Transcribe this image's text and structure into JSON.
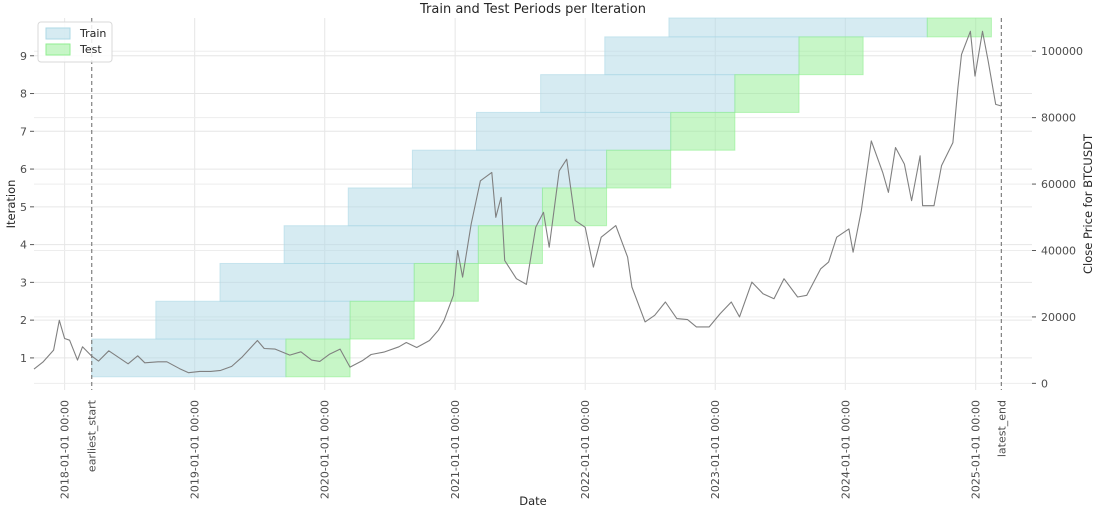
{
  "chart_data": {
    "type": "area",
    "title": "Train and Test Periods per Iteration",
    "xlabel": "Date",
    "ylabel": "Iteration",
    "y2label": "Close Price for BTCUSDT",
    "xlim": [
      "2017-10-07",
      "2025-06-08"
    ],
    "ylim": [
      0.15,
      10.0
    ],
    "y2lim": [
      -2000,
      110000
    ],
    "grid": true,
    "legend_position": "top-left",
    "x_ticks": [
      {
        "date": "2018-01-01",
        "label": "2018-01-01 00:00"
      },
      {
        "date": "2019-01-01",
        "label": "2019-01-01 00:00"
      },
      {
        "date": "2020-01-01",
        "label": "2020-01-01 00:00"
      },
      {
        "date": "2021-01-01",
        "label": "2021-01-01 00:00"
      },
      {
        "date": "2022-01-01",
        "label": "2022-01-01 00:00"
      },
      {
        "date": "2023-01-01",
        "label": "2023-01-01 00:00"
      },
      {
        "date": "2024-01-01",
        "label": "2024-01-01 00:00"
      },
      {
        "date": "2025-01-01",
        "label": "2025-01-01 00:00"
      }
    ],
    "y_ticks": [
      1,
      2,
      3,
      4,
      5,
      6,
      7,
      8,
      9
    ],
    "y2_ticks": [
      0,
      20000,
      40000,
      60000,
      80000,
      100000
    ],
    "markers": [
      {
        "date": "2018-03-18",
        "label": "earliest_start"
      },
      {
        "date": "2025-03-14",
        "label": "latest_end"
      }
    ],
    "legend": [
      {
        "name": "Train",
        "color": "#add8e6"
      },
      {
        "name": "Test",
        "color": "#90ee90"
      }
    ],
    "iterations": [
      {
        "iteration": 1,
        "train": [
          "2018-03-18",
          "2019-09-14"
        ],
        "test": [
          "2019-09-14",
          "2020-03-12"
        ]
      },
      {
        "iteration": 2,
        "train": [
          "2018-09-14",
          "2020-03-12"
        ],
        "test": [
          "2020-03-12",
          "2020-09-08"
        ]
      },
      {
        "iteration": 3,
        "train": [
          "2019-03-13",
          "2020-09-08"
        ],
        "test": [
          "2020-09-08",
          "2021-03-07"
        ]
      },
      {
        "iteration": 4,
        "train": [
          "2019-09-09",
          "2021-03-07"
        ],
        "test": [
          "2021-03-07",
          "2021-09-03"
        ]
      },
      {
        "iteration": 5,
        "train": [
          "2020-03-07",
          "2021-09-03"
        ],
        "test": [
          "2021-09-03",
          "2022-03-02"
        ]
      },
      {
        "iteration": 6,
        "train": [
          "2020-09-03",
          "2022-03-02"
        ],
        "test": [
          "2022-03-02",
          "2022-08-29"
        ]
      },
      {
        "iteration": 7,
        "train": [
          "2021-03-02",
          "2022-08-29"
        ],
        "test": [
          "2022-08-29",
          "2023-02-25"
        ]
      },
      {
        "iteration": 8,
        "train": [
          "2021-08-29",
          "2023-02-25"
        ],
        "test": [
          "2023-02-25",
          "2023-08-24"
        ]
      },
      {
        "iteration": 9,
        "train": [
          "2022-02-25",
          "2023-08-24"
        ],
        "test": [
          "2023-08-24",
          "2024-02-20"
        ]
      },
      {
        "iteration": 10,
        "train": [
          "2022-08-24",
          "2024-08-18"
        ],
        "test": [
          "2024-08-18",
          "2025-02-14"
        ]
      }
    ],
    "price_series": {
      "name": "Close Price for BTCUSDT",
      "color": "#808080",
      "points": [
        [
          "2017-10-07",
          4300
        ],
        [
          "2017-11-01",
          6400
        ],
        [
          "2017-12-01",
          10000
        ],
        [
          "2017-12-17",
          19000
        ],
        [
          "2018-01-01",
          13500
        ],
        [
          "2018-01-15",
          13000
        ],
        [
          "2018-02-06",
          7000
        ],
        [
          "2018-02-20",
          11000
        ],
        [
          "2018-03-18",
          8200
        ],
        [
          "2018-04-06",
          6700
        ],
        [
          "2018-05-05",
          9800
        ],
        [
          "2018-06-28",
          5900
        ],
        [
          "2018-07-25",
          8300
        ],
        [
          "2018-08-14",
          6200
        ],
        [
          "2018-09-20",
          6500
        ],
        [
          "2018-10-15",
          6500
        ],
        [
          "2018-11-20",
          4400
        ],
        [
          "2018-12-15",
          3200
        ],
        [
          "2019-01-15",
          3600
        ],
        [
          "2019-02-15",
          3600
        ],
        [
          "2019-03-15",
          3900
        ],
        [
          "2019-04-15",
          5100
        ],
        [
          "2019-05-15",
          8000
        ],
        [
          "2019-06-26",
          12900
        ],
        [
          "2019-07-15",
          10500
        ],
        [
          "2019-08-15",
          10300
        ],
        [
          "2019-09-25",
          8500
        ],
        [
          "2019-10-26",
          9500
        ],
        [
          "2019-11-25",
          7000
        ],
        [
          "2019-12-18",
          6600
        ],
        [
          "2020-01-15",
          8800
        ],
        [
          "2020-02-13",
          10300
        ],
        [
          "2020-03-12",
          4900
        ],
        [
          "2020-04-15",
          6800
        ],
        [
          "2020-05-10",
          8700
        ],
        [
          "2020-06-15",
          9400
        ],
        [
          "2020-07-27",
          11000
        ],
        [
          "2020-08-17",
          12300
        ],
        [
          "2020-09-15",
          10800
        ],
        [
          "2020-10-21",
          12900
        ],
        [
          "2020-11-15",
          16000
        ],
        [
          "2020-12-01",
          19000
        ],
        [
          "2020-12-27",
          26500
        ],
        [
          "2021-01-08",
          40000
        ],
        [
          "2021-01-22",
          32000
        ],
        [
          "2021-02-15",
          48000
        ],
        [
          "2021-03-13",
          61000
        ],
        [
          "2021-04-14",
          63500
        ],
        [
          "2021-04-25",
          50000
        ],
        [
          "2021-05-10",
          56000
        ],
        [
          "2021-05-20",
          37000
        ],
        [
          "2021-06-22",
          31500
        ],
        [
          "2021-07-20",
          29800
        ],
        [
          "2021-08-15",
          47000
        ],
        [
          "2021-09-06",
          51500
        ],
        [
          "2021-09-22",
          41000
        ],
        [
          "2021-10-20",
          64000
        ],
        [
          "2021-11-10",
          67500
        ],
        [
          "2021-12-04",
          49000
        ],
        [
          "2022-01-01",
          47000
        ],
        [
          "2022-01-24",
          35000
        ],
        [
          "2022-02-15",
          44000
        ],
        [
          "2022-03-28",
          47500
        ],
        [
          "2022-04-30",
          38000
        ],
        [
          "2022-05-12",
          29000
        ],
        [
          "2022-06-18",
          18500
        ],
        [
          "2022-07-15",
          20500
        ],
        [
          "2022-08-14",
          24500
        ],
        [
          "2022-09-15",
          19500
        ],
        [
          "2022-10-15",
          19200
        ],
        [
          "2022-11-09",
          17000
        ],
        [
          "2022-12-15",
          17000
        ],
        [
          "2023-01-15",
          21000
        ],
        [
          "2023-02-15",
          24500
        ],
        [
          "2023-03-10",
          20000
        ],
        [
          "2023-04-14",
          30500
        ],
        [
          "2023-05-15",
          27000
        ],
        [
          "2023-06-15",
          25500
        ],
        [
          "2023-07-13",
          31500
        ],
        [
          "2023-08-20",
          26000
        ],
        [
          "2023-09-15",
          26500
        ],
        [
          "2023-10-24",
          34500
        ],
        [
          "2023-11-15",
          36500
        ],
        [
          "2023-12-08",
          44000
        ],
        [
          "2024-01-11",
          46500
        ],
        [
          "2024-01-23",
          39500
        ],
        [
          "2024-02-15",
          52000
        ],
        [
          "2024-03-14",
          73000
        ],
        [
          "2024-04-15",
          63500
        ],
        [
          "2024-05-01",
          57500
        ],
        [
          "2024-05-21",
          71000
        ],
        [
          "2024-06-15",
          66000
        ],
        [
          "2024-07-05",
          55000
        ],
        [
          "2024-07-29",
          68500
        ],
        [
          "2024-08-05",
          53500
        ],
        [
          "2024-09-06",
          53500
        ],
        [
          "2024-09-27",
          65500
        ],
        [
          "2024-10-29",
          72500
        ],
        [
          "2024-11-12",
          89000
        ],
        [
          "2024-11-22",
          99000
        ],
        [
          "2024-12-17",
          106000
        ],
        [
          "2024-12-30",
          92500
        ],
        [
          "2025-01-20",
          106000
        ],
        [
          "2025-02-05",
          97000
        ],
        [
          "2025-02-26",
          84000
        ],
        [
          "2025-03-14",
          83500
        ]
      ]
    }
  }
}
